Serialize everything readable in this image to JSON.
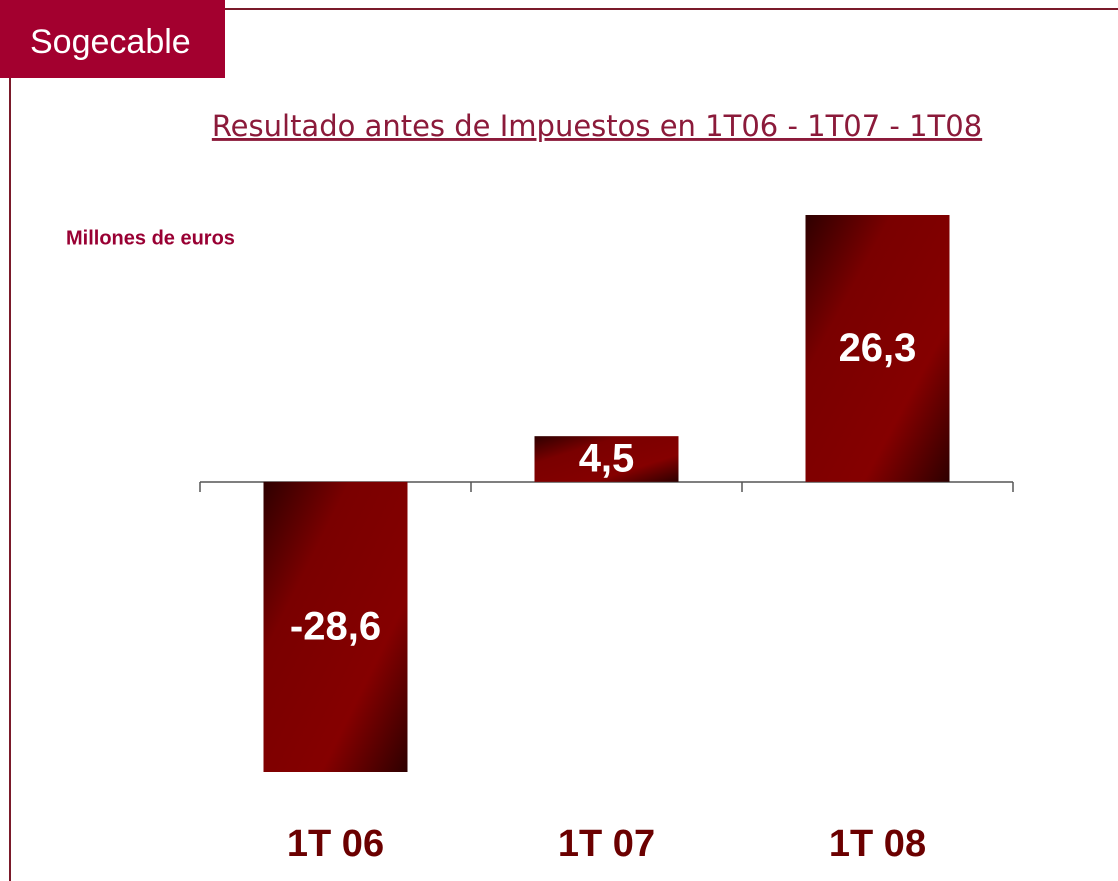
{
  "brand": "Sogecable",
  "chart_data": {
    "type": "bar",
    "title": "Resultado antes de Impuestos en 1T06 - 1T07 - 1T08",
    "subtitle": "Millones de euros",
    "categories": [
      "1T 06",
      "1T 07",
      "1T 08"
    ],
    "values": [
      -28.6,
      4.5,
      26.3
    ],
    "value_labels": [
      "-28,6",
      "4,5",
      "26,3"
    ],
    "color": "#8b0000"
  }
}
